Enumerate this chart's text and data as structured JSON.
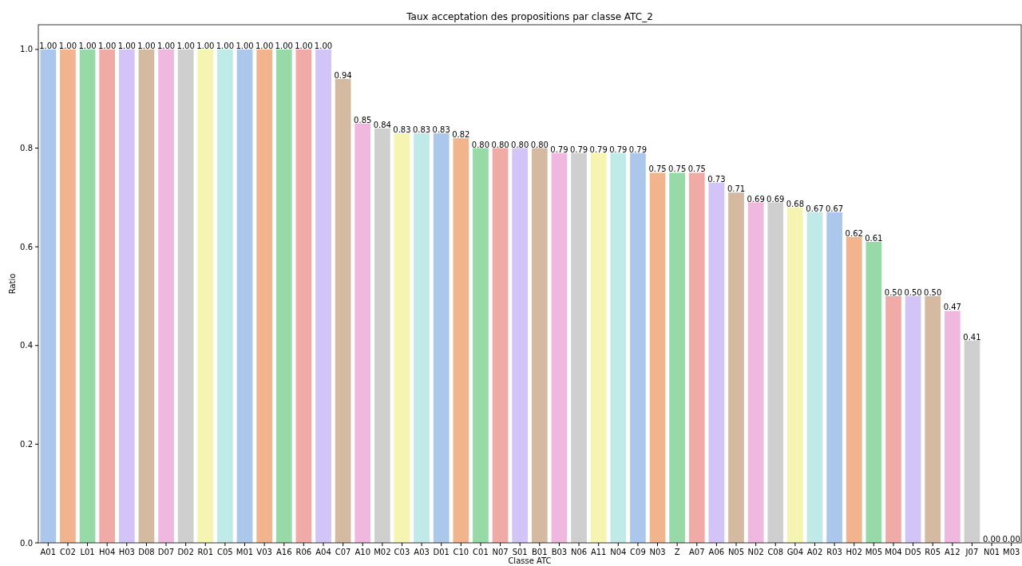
{
  "chart_data": {
    "type": "bar",
    "title": "Taux acceptation des propositions par classe ATC_2",
    "xlabel": "Classe ATC",
    "ylabel": "Ratio",
    "categories": [
      "A01",
      "C02",
      "L01",
      "H04",
      "H03",
      "D08",
      "D07",
      "D02",
      "R01",
      "C05",
      "M01",
      "V03",
      "A16",
      "R06",
      "A04",
      "C07",
      "A10",
      "M02",
      "C03",
      "A03",
      "D01",
      "C10",
      "C01",
      "N07",
      "S01",
      "B01",
      "B03",
      "N06",
      "A11",
      "N04",
      "C09",
      "N03",
      "Z",
      "A07",
      "A06",
      "N05",
      "N02",
      "C08",
      "G04",
      "A02",
      "R03",
      "H02",
      "M05",
      "M04",
      "D05",
      "R05",
      "A12",
      "J07",
      "N01",
      "M03"
    ],
    "values": [
      1,
      1,
      1,
      1,
      1,
      1,
      1,
      1,
      1,
      1,
      1,
      1,
      1,
      1,
      1,
      0.94,
      0.85,
      0.84,
      0.83,
      0.83,
      0.83,
      0.82,
      0.8,
      0.8,
      0.8,
      0.8,
      0.79,
      0.79,
      0.79,
      0.79,
      0.79,
      0.75,
      0.75,
      0.75,
      0.73,
      0.71,
      0.69,
      0.69,
      0.68,
      0.67,
      0.67,
      0.62,
      0.61,
      0.5,
      0.5,
      0.5,
      0.47,
      0.41,
      0,
      0
    ],
    "value_labels": [
      "1.00",
      "1.00",
      "1.00",
      "1.00",
      "1.00",
      "1.00",
      "1.00",
      "1.00",
      "1.00",
      "1.00",
      "1.00",
      "1.00",
      "1.00",
      "1.00",
      "1.00",
      "0.94",
      "0.85",
      "0.84",
      "0.83",
      "0.83",
      "0.83",
      "0.82",
      "0.80",
      "0.80",
      "0.80",
      "0.80",
      "0.79",
      "0.79",
      "0.79",
      "0.79",
      "0.79",
      "0.75",
      "0.75",
      "0.75",
      "0.73",
      "0.71",
      "0.69",
      "0.69",
      "0.68",
      "0.67",
      "0.67",
      "0.62",
      "0.61",
      "0.50",
      "0.50",
      "0.50",
      "0.47",
      "0.41",
      "0.00",
      "0.00"
    ],
    "colors": [
      "#abc8ec",
      "#f1b48d",
      "#97d9a7",
      "#f1aba7",
      "#d2c4f6",
      "#d5baa2",
      "#f0b8df",
      "#cfcfcf",
      "#f5f4b0",
      "#c0eae8",
      "#abc8ec",
      "#f1b48d",
      "#97d9a7",
      "#f1aba7",
      "#d2c4f6",
      "#d5baa2",
      "#f0b8df",
      "#cfcfcf",
      "#f5f4b0",
      "#c0eae8",
      "#abc8ec",
      "#f1b48d",
      "#97d9a7",
      "#f1aba7",
      "#d2c4f6",
      "#d5baa2",
      "#f0b8df",
      "#cfcfcf",
      "#f5f4b0",
      "#c0eae8",
      "#abc8ec",
      "#f1b48d",
      "#97d9a7",
      "#f1aba7",
      "#d2c4f6",
      "#d5baa2",
      "#f0b8df",
      "#cfcfcf",
      "#f5f4b0",
      "#c0eae8",
      "#abc8ec",
      "#f1b48d",
      "#97d9a7",
      "#f1aba7",
      "#d2c4f6",
      "#d5baa2",
      "#f0b8df",
      "#cfcfcf",
      "#f5f4b0",
      "#c0eae8"
    ],
    "ylim": [
      0,
      1.05
    ],
    "yticks": [
      {
        "value": 0,
        "label": "0.0"
      },
      {
        "value": 0.2,
        "label": "0.2"
      },
      {
        "value": 0.4,
        "label": "0.4"
      },
      {
        "value": 0.6,
        "label": "0.6"
      },
      {
        "value": 0.8,
        "label": "0.8"
      },
      {
        "value": 1,
        "label": "1.0"
      }
    ],
    "grid": false
  }
}
